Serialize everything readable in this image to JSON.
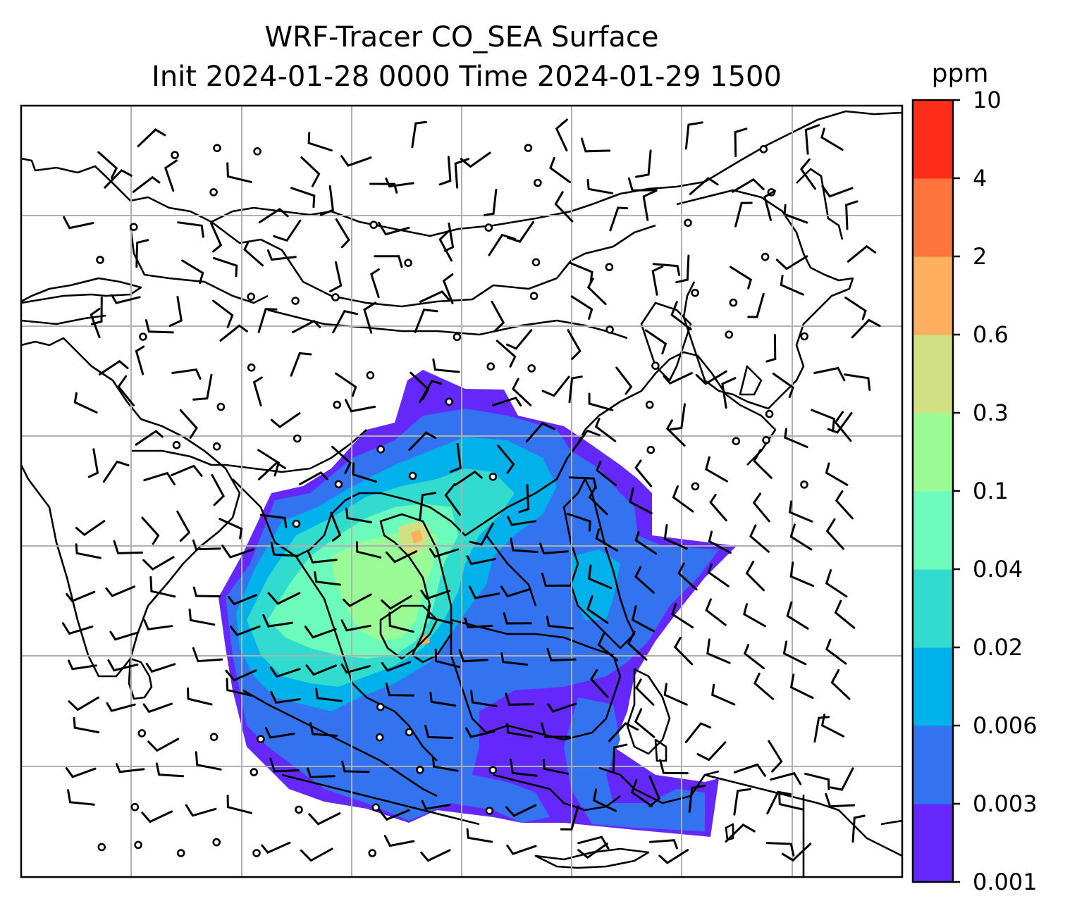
{
  "chart_data": {
    "type": "heatmap",
    "title": "WRF-Tracer CO_SEA Surface",
    "subtitle": "Init 2024-01-28 0000 Time 2024-01-29 1500",
    "colorbar": {
      "unit": "ppm",
      "levels": [
        "0.001",
        "0.003",
        "0.006",
        "0.02",
        "0.04",
        "0.1",
        "0.3",
        "0.6",
        "2",
        "4",
        "10"
      ],
      "colors": [
        "#6428fa",
        "#3373f0",
        "#00b1ea",
        "#31dccf",
        "#6dfbbc",
        "#9afc96",
        "#d0e083",
        "#ffaf5e",
        "#ff733d",
        "#ff2d19"
      ]
    },
    "grid": true,
    "overlays": [
      "wind barbs",
      "coastlines",
      "country borders"
    ]
  }
}
